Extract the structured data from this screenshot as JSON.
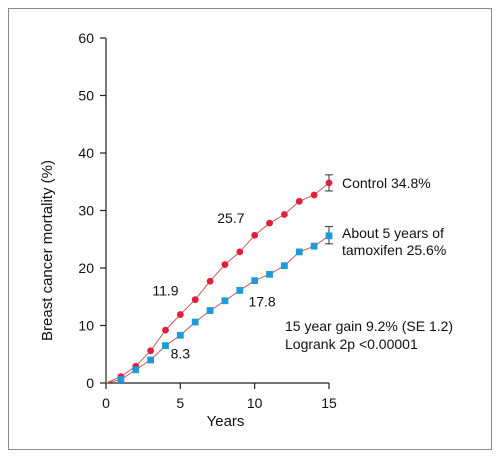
{
  "chart_data": {
    "type": "line",
    "xlabel": "Years",
    "ylabel": "Breast cancer mortality (%)",
    "xlim": [
      0,
      15
    ],
    "ylim": [
      0,
      60
    ],
    "x_ticks": [
      "0",
      "5",
      "10",
      "15"
    ],
    "y_ticks": [
      "0",
      "10",
      "20",
      "30",
      "40",
      "50",
      "60"
    ],
    "grid": false,
    "colors": {
      "control": "#e0203a",
      "tamoxifen": "#1e9bd7",
      "line": "#c85a5a",
      "axis": "#222222"
    },
    "series": [
      {
        "key": "control",
        "name": "Control 34.8%",
        "marker": "circle",
        "x": [
          0,
          1,
          2,
          3,
          4,
          5,
          6,
          7,
          8,
          9,
          10,
          11,
          12,
          13,
          14,
          15
        ],
        "y": [
          0,
          1.1,
          2.9,
          5.6,
          9.2,
          11.9,
          14.5,
          17.7,
          20.6,
          22.8,
          25.7,
          27.8,
          29.3,
          31.6,
          32.7,
          34.8
        ],
        "error": {
          "x": 15,
          "low": 33.4,
          "high": 36.2
        }
      },
      {
        "key": "tamoxifen",
        "name_lines": [
          "About 5 years of",
          "tamoxifen 25.6%"
        ],
        "marker": "square",
        "x": [
          0,
          1,
          2,
          3,
          4,
          5,
          6,
          7,
          8,
          9,
          10,
          11,
          12,
          13,
          14,
          15
        ],
        "y": [
          0,
          0.6,
          2.3,
          4.0,
          6.5,
          8.3,
          10.6,
          12.6,
          14.3,
          16.1,
          17.8,
          18.9,
          20.4,
          22.8,
          23.8,
          25.6
        ],
        "error": {
          "x": 15,
          "low": 24.2,
          "high": 27.2
        }
      }
    ],
    "data_labels": [
      {
        "text": "25.7",
        "x": 8.4,
        "y": 27.8
      },
      {
        "text": "11.9",
        "x": 4.0,
        "y": 15.2
      },
      {
        "text": "17.8",
        "x": 10.5,
        "y": 13.3
      },
      {
        "text": "8.3",
        "x": 5.0,
        "y": 4.3
      }
    ],
    "notes": [
      "15 year gain 9.2% (SE 1.2)",
      "Logrank 2p <0.00001"
    ]
  }
}
